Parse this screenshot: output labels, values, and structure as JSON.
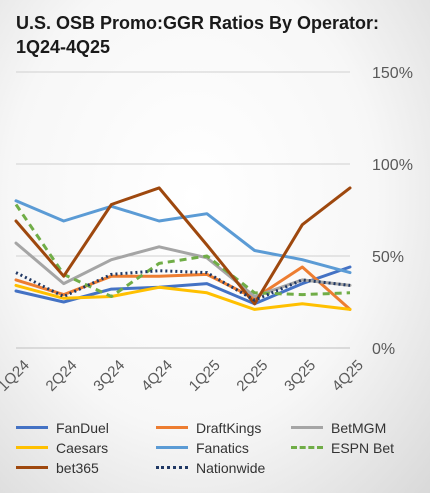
{
  "chart_data": {
    "type": "line",
    "title_lines": [
      "U.S. OSB Promo:GGR Ratios By Operator:",
      "1Q24-4Q25"
    ],
    "categories": [
      "1Q24",
      "2Q24",
      "3Q24",
      "4Q24",
      "1Q25",
      "2Q25",
      "3Q25",
      "4Q25"
    ],
    "ylim": [
      0,
      150
    ],
    "yticks": [
      "0%",
      "50%",
      "100%",
      "150%"
    ],
    "ytick_values": [
      0,
      50,
      100,
      150
    ],
    "grid": true,
    "legend_position": "bottom",
    "series": [
      {
        "name": "FanDuel",
        "color": "#4472C4",
        "dash": "solid",
        "values": [
          31,
          25,
          32,
          33,
          35,
          24,
          35,
          44
        ]
      },
      {
        "name": "DraftKings",
        "color": "#ED7D31",
        "dash": "solid",
        "values": [
          37,
          29,
          39,
          39,
          40,
          27,
          44,
          21
        ]
      },
      {
        "name": "BetMGM",
        "color": "#A5A5A5",
        "dash": "solid",
        "values": [
          57,
          35,
          48,
          55,
          49,
          28,
          37,
          34
        ]
      },
      {
        "name": "Caesars",
        "color": "#FFC000",
        "dash": "solid",
        "values": [
          34,
          27,
          28,
          33,
          30,
          21,
          24,
          21
        ]
      },
      {
        "name": "Fanatics",
        "color": "#5B9BD5",
        "dash": "solid",
        "values": [
          80,
          69,
          77,
          69,
          73,
          53,
          48,
          41
        ]
      },
      {
        "name": "ESPN Bet",
        "color": "#70AD47",
        "dash": "dashed",
        "values": [
          78,
          40,
          28,
          46,
          50,
          30,
          29,
          30
        ]
      },
      {
        "name": "bet365",
        "color": "#9E480E",
        "dash": "solid",
        "values": [
          69,
          39,
          78,
          87,
          56,
          24,
          67,
          87
        ]
      },
      {
        "name": "Nationwide",
        "color": "#203864",
        "dash": "dotted",
        "values": [
          41,
          28,
          40,
          42,
          41,
          26,
          37,
          34
        ]
      }
    ]
  }
}
